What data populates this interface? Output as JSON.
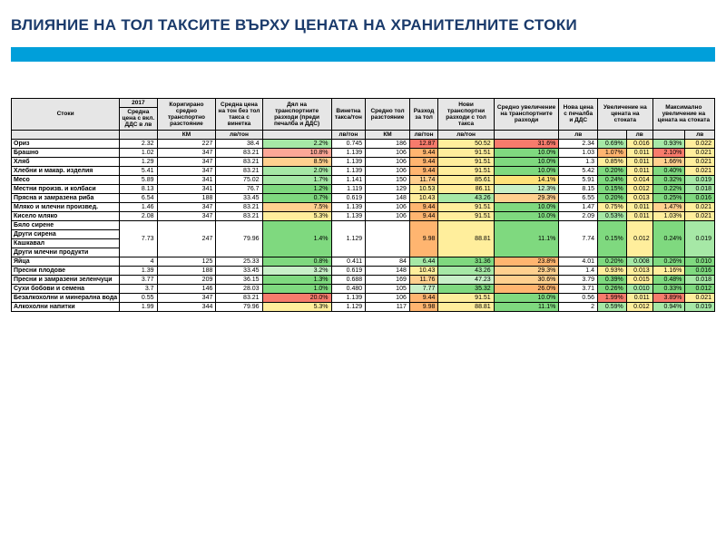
{
  "title": "ВЛИЯНИЕ НА ТОЛ ТАКСИТЕ ВЪРХУ ЦЕНАТА НА ХРАНИТЕЛНИТЕ СТОКИ",
  "columnsTop": [
    "Стоки",
    "2017",
    "Коригирано средно транспортно разстояние",
    "Средна цена на тон без тол такса с винетка",
    "Дял на транспортните разходи (преди печалба и ДДС)",
    "Винетна такса/тон",
    "Средно тол разстояние",
    "Разход за тол",
    "Нови транспортни разходи с тол такса",
    "Средно увеличение на транспортните разходи",
    "Нова цена с печалба и ДДС",
    "Увеличение на цената на стоката",
    "",
    "Максимално увеличение на цената на стоката",
    ""
  ],
  "columnsSub": {
    "c2017": "Средна цена с вкл. ДДС в лв"
  },
  "units": [
    "",
    "",
    "КМ",
    "лв/тон",
    "",
    "лв/тон",
    "КМ",
    "лв/тон",
    "лв/тон",
    "",
    "лв",
    "",
    "лв",
    "",
    "лв"
  ],
  "colors": {
    "g1": "#7fd97f",
    "g2": "#a6e8a6",
    "g3": "#c8f0c8",
    "y1": "#ffe27a",
    "y2": "#ffee9c",
    "o1": "#ffb570",
    "o2": "#ffd08f",
    "r1": "#f77b6c",
    "r2": "#fba797",
    "white": "#ffffff",
    "grey": "#e6e6e6"
  },
  "rows": [
    {
      "label": "Ориз",
      "v": [
        2.32,
        227,
        38.4,
        "2.2%",
        "0.745",
        186,
        "12.87",
        "50.52",
        "31.6%",
        2.34,
        "0.69%",
        "0.016",
        "0.93%",
        "0.022"
      ],
      "bg": [
        null,
        null,
        null,
        "g2",
        null,
        null,
        "r1",
        "y2",
        "r1",
        null,
        "g2",
        "y2",
        "g2",
        "y2"
      ]
    },
    {
      "label": "Брашно",
      "v": [
        1.02,
        347,
        83.21,
        "10.8%",
        "1.139",
        106,
        "9.44",
        "91.51",
        "10.0%",
        1.03,
        "1.07%",
        "0.011",
        "2.10%",
        "0.021"
      ],
      "bg": [
        null,
        null,
        null,
        "r2",
        null,
        null,
        "o1",
        "y2",
        "g1",
        null,
        "o1",
        "y2",
        "r1",
        "y2"
      ]
    },
    {
      "label": "Хляб",
      "v": [
        1.29,
        347,
        83.21,
        "8.5%",
        "1.139",
        106,
        "9.44",
        "91.51",
        "10.0%",
        1.3,
        "0.85%",
        "0.011",
        "1.66%",
        "0.021"
      ],
      "bg": [
        null,
        null,
        null,
        "o2",
        null,
        null,
        "o1",
        "y2",
        "g1",
        null,
        "y2",
        "y2",
        "o2",
        "y2"
      ]
    },
    {
      "label": "Хлебни и макар. изделия",
      "v": [
        5.41,
        347,
        83.21,
        "2.0%",
        "1.139",
        106,
        "9.44",
        "91.51",
        "10.0%",
        5.42,
        "0.20%",
        "0.011",
        "0.40%",
        "0.021"
      ],
      "bg": [
        null,
        null,
        null,
        "g2",
        null,
        null,
        "o1",
        "y2",
        "g1",
        null,
        "g1",
        "y2",
        "g1",
        "y2"
      ]
    },
    {
      "label": "Месо",
      "v": [
        5.89,
        341,
        75.02,
        "1.7%",
        "1.141",
        150,
        "11.74",
        "85.61",
        "14.1%",
        5.91,
        "0.24%",
        "0.014",
        "0.32%",
        "0.019"
      ],
      "bg": [
        null,
        null,
        null,
        "g2",
        null,
        null,
        "o2",
        "y2",
        "y1",
        null,
        "g1",
        "y2",
        "g1",
        "g2"
      ]
    },
    {
      "label": "Местни произв. и колбаси",
      "v": [
        8.13,
        341,
        76.7,
        "1.2%",
        "1.119",
        129,
        "10.53",
        "86.11",
        "12.3%",
        8.15,
        "0.15%",
        "0.012",
        "0.22%",
        "0.018"
      ],
      "bg": [
        null,
        null,
        null,
        "g1",
        null,
        null,
        "y2",
        "y2",
        "g3",
        null,
        "g1",
        "y2",
        "g1",
        "g2"
      ]
    },
    {
      "label": "Прясна и замразена риба",
      "v": [
        6.54,
        188,
        33.45,
        "0.7%",
        "0.619",
        148,
        "10.43",
        "43.26",
        "29.3%",
        6.55,
        "0.20%",
        "0.013",
        "0.25%",
        "0.016"
      ],
      "bg": [
        null,
        null,
        null,
        "g1",
        null,
        null,
        "y2",
        "g2",
        "o2",
        null,
        "g1",
        "y2",
        "g1",
        "g1"
      ]
    },
    {
      "label": "Мляко и млечни произвед.",
      "v": [
        1.46,
        347,
        83.21,
        "7.5%",
        "1.139",
        106,
        "9.44",
        "91.51",
        "10.0%",
        1.47,
        "0.75%",
        "0.011",
        "1.47%",
        "0.021"
      ],
      "bg": [
        null,
        null,
        null,
        "o2",
        null,
        null,
        "o1",
        "y2",
        "g1",
        null,
        "y2",
        "y2",
        "o2",
        "y2"
      ]
    },
    {
      "label": "Кисело мляко",
      "v": [
        2.08,
        347,
        83.21,
        "5.3%",
        "1.139",
        106,
        "9.44",
        "91.51",
        "10.0%",
        2.09,
        "0.53%",
        "0.011",
        "1.03%",
        "0.021"
      ],
      "bg": [
        null,
        null,
        null,
        "y2",
        null,
        null,
        "o1",
        "y2",
        "g1",
        null,
        "g2",
        "y2",
        "y2",
        "y2"
      ]
    },
    {
      "label": "Бяло сирене",
      "group": true
    },
    {
      "label": "Други сирена",
      "group": true
    },
    {
      "label": "Кашкавал",
      "group": true,
      "v": [
        7.73,
        247,
        79.96,
        "1.4%",
        "1.129",
        "",
        "9.98",
        "88.81",
        "11.1%",
        7.74,
        "0.15%",
        "0.012",
        "0.24%",
        "0.019"
      ],
      "bg": [
        null,
        null,
        null,
        "g1",
        null,
        null,
        "o1",
        "y2",
        "g1",
        null,
        "g1",
        "y2",
        "g1",
        "g2"
      ],
      "rowspan": 4,
      "spanLabels": [
        "Бяло сирене",
        "Други сирена",
        "Кашкавал",
        "Други млечни продукти"
      ]
    },
    {
      "label": "Яйца",
      "v": [
        4.0,
        125,
        25.33,
        "0.8%",
        "0.411",
        84,
        "6.44",
        "31.36",
        "23.8%",
        4.01,
        "0.20%",
        "0.008",
        "0.26%",
        "0.010"
      ],
      "bg": [
        null,
        null,
        null,
        "g1",
        null,
        null,
        "g2",
        "g1",
        "o1",
        null,
        "g1",
        "g2",
        "g1",
        "g1"
      ]
    },
    {
      "label": "Пресни плодове",
      "v": [
        1.39,
        188,
        33.45,
        "3.2%",
        "0.619",
        148,
        "10.43",
        "43.26",
        "29.3%",
        1.4,
        "0.93%",
        "0.013",
        "1.16%",
        "0.016"
      ],
      "bg": [
        null,
        null,
        null,
        "g3",
        null,
        null,
        "y2",
        "g2",
        "o2",
        null,
        "y2",
        "y2",
        "y2",
        "g1"
      ]
    },
    {
      "label": "Пресни и замразени зеленчуци",
      "v": [
        3.77,
        209,
        36.15,
        "1.3%",
        "0.688",
        169,
        "11.76",
        "47.23",
        "30.6%",
        3.79,
        "0.39%",
        "0.015",
        "0.48%",
        "0.018"
      ],
      "bg": [
        null,
        null,
        null,
        "g1",
        null,
        null,
        "o2",
        "g3",
        "o2",
        null,
        "g1",
        "y2",
        "g1",
        "g2"
      ]
    },
    {
      "label": "Сухи бобови и семена",
      "v": [
        3.7,
        146,
        28.03,
        "1.0%",
        "0.480",
        105,
        "7.77",
        "35.32",
        "26.0%",
        3.71,
        "0.26%",
        "0.010",
        "0.33%",
        "0.012"
      ],
      "bg": [
        null,
        null,
        null,
        "g1",
        null,
        null,
        "g3",
        "g1",
        "o1",
        null,
        "g1",
        "g2",
        "g1",
        "g1"
      ]
    },
    {
      "label": "Безалкохолни и минерална вода",
      "v": [
        0.55,
        347,
        83.21,
        "20.0%",
        "1.139",
        106,
        "9.44",
        "91.51",
        "10.0%",
        0.56,
        "1.99%",
        "0.011",
        "3.89%",
        "0.021"
      ],
      "bg": [
        null,
        null,
        null,
        "r1",
        null,
        null,
        "o1",
        "y2",
        "g1",
        null,
        "r1",
        "y2",
        "r1",
        "y2"
      ]
    },
    {
      "label": "Алкохолни напитки",
      "v": [
        1.99,
        344,
        79.96,
        "5.3%",
        "1.129",
        117,
        "9.98",
        "88.81",
        "11.1%",
        2.0,
        "0.59%",
        "0.012",
        "0.94%",
        "0.019"
      ],
      "bg": [
        null,
        null,
        null,
        "y2",
        null,
        null,
        "o1",
        "y2",
        "g1",
        null,
        "g2",
        "y2",
        "g2",
        "g2"
      ]
    }
  ]
}
